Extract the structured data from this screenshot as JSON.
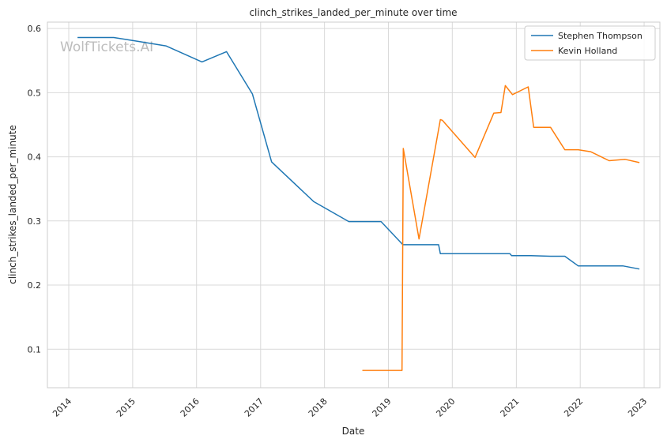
{
  "chart_data": {
    "type": "line",
    "title": "clinch_strikes_landed_per_minute over time",
    "xlabel": "Date",
    "ylabel": "clinch_strikes_landed_per_minute",
    "watermark": "WolfTickets.AI",
    "x_type": "date",
    "xlim": [
      "2013-09-01",
      "2023-04-01"
    ],
    "ylim": [
      0.04,
      0.61
    ],
    "x_ticks": [
      "2014",
      "2015",
      "2016",
      "2017",
      "2018",
      "2019",
      "2020",
      "2021",
      "2022",
      "2023"
    ],
    "y_ticks": [
      "0.1",
      "0.2",
      "0.3",
      "0.4",
      "0.5",
      "0.6"
    ],
    "y_tick_values": [
      0.1,
      0.2,
      0.3,
      0.4,
      0.5,
      0.6
    ],
    "grid": true,
    "legend": "top-right",
    "series": [
      {
        "name": "Stephen Thompson",
        "color": "#1f77b4",
        "points": [
          [
            "2014-02-20",
            0.586
          ],
          [
            "2014-09-15",
            0.586
          ],
          [
            "2015-02-01",
            0.58
          ],
          [
            "2015-07-10",
            0.573
          ],
          [
            "2016-02-01",
            0.548
          ],
          [
            "2016-06-20",
            0.564
          ],
          [
            "2016-11-15",
            0.498
          ],
          [
            "2017-03-05",
            0.392
          ],
          [
            "2017-11-01",
            0.33
          ],
          [
            "2018-05-20",
            0.299
          ],
          [
            "2018-11-20",
            0.299
          ],
          [
            "2019-03-25",
            0.263
          ],
          [
            "2019-10-15",
            0.263
          ],
          [
            "2019-10-25",
            0.249
          ],
          [
            "2020-11-25",
            0.249
          ],
          [
            "2020-12-05",
            0.246
          ],
          [
            "2021-03-25",
            0.246
          ],
          [
            "2021-07-15",
            0.245
          ],
          [
            "2021-10-05",
            0.245
          ],
          [
            "2021-12-20",
            0.23
          ],
          [
            "2022-09-01",
            0.23
          ],
          [
            "2022-12-05",
            0.225
          ]
        ]
      },
      {
        "name": "Kevin Holland",
        "color": "#ff7f0e",
        "points": [
          [
            "2018-08-05",
            0.067
          ],
          [
            "2019-03-20",
            0.067
          ],
          [
            "2019-03-27",
            0.413
          ],
          [
            "2019-06-25",
            0.272
          ],
          [
            "2019-10-25",
            0.458
          ],
          [
            "2019-11-05",
            0.457
          ],
          [
            "2020-05-10",
            0.399
          ],
          [
            "2020-08-25",
            0.468
          ],
          [
            "2020-10-05",
            0.469
          ],
          [
            "2020-10-30",
            0.511
          ],
          [
            "2020-12-10",
            0.497
          ],
          [
            "2021-03-10",
            0.509
          ],
          [
            "2021-04-10",
            0.446
          ],
          [
            "2021-07-15",
            0.446
          ],
          [
            "2021-10-05",
            0.411
          ],
          [
            "2021-12-20",
            0.411
          ],
          [
            "2022-03-01",
            0.408
          ],
          [
            "2022-06-15",
            0.394
          ],
          [
            "2022-09-15",
            0.396
          ],
          [
            "2022-12-05",
            0.391
          ]
        ]
      }
    ]
  }
}
